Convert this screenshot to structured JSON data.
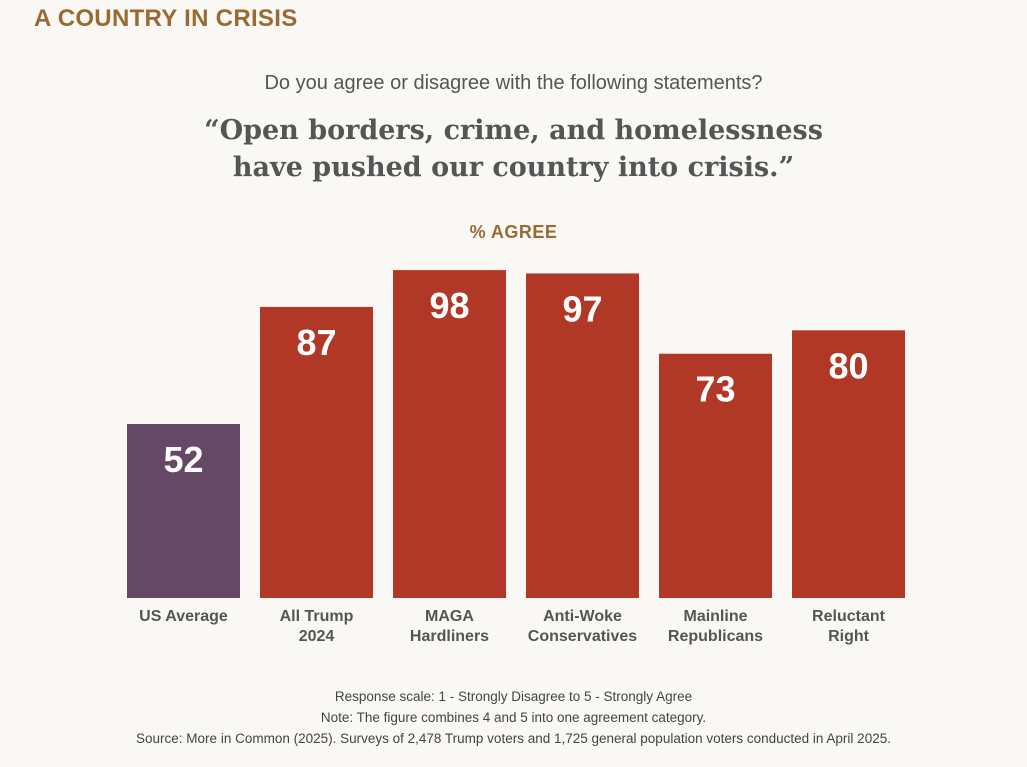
{
  "header": {
    "kicker": "A COUNTRY IN CRISIS",
    "question": "Do you agree or disagree with the following statements?",
    "statement_line1": "“Open borders, crime, and homelessness",
    "statement_line2": "have pushed our country into crisis.”"
  },
  "chart_data": {
    "type": "bar",
    "title": "“Open borders, crime, and homelessness have pushed our country into crisis.”",
    "ylabel": "% AGREE",
    "ylim": [
      0,
      100
    ],
    "grid": false,
    "categories": [
      [
        "US Average"
      ],
      [
        "All Trump",
        "2024"
      ],
      [
        "MAGA",
        "Hardliners"
      ],
      [
        "Anti-Woke",
        "Conservatives"
      ],
      [
        "Mainline",
        "Republicans"
      ],
      [
        "Reluctant",
        "Right"
      ]
    ],
    "values": [
      52,
      87,
      98,
      97,
      73,
      80
    ],
    "colors": [
      "#654865",
      "#b13827",
      "#b13827",
      "#b13827",
      "#b13827",
      "#b13827"
    ]
  },
  "footer": {
    "line1": "Response scale: 1 - Strongly Disagree to 5 - Strongly Agree",
    "line2": "Note: The figure combines 4 and 5 into one agreement category.",
    "line3": "Source: More in Common (2025). Surveys of 2,478 Trump voters and 1,725 general population voters conducted in April 2025."
  }
}
